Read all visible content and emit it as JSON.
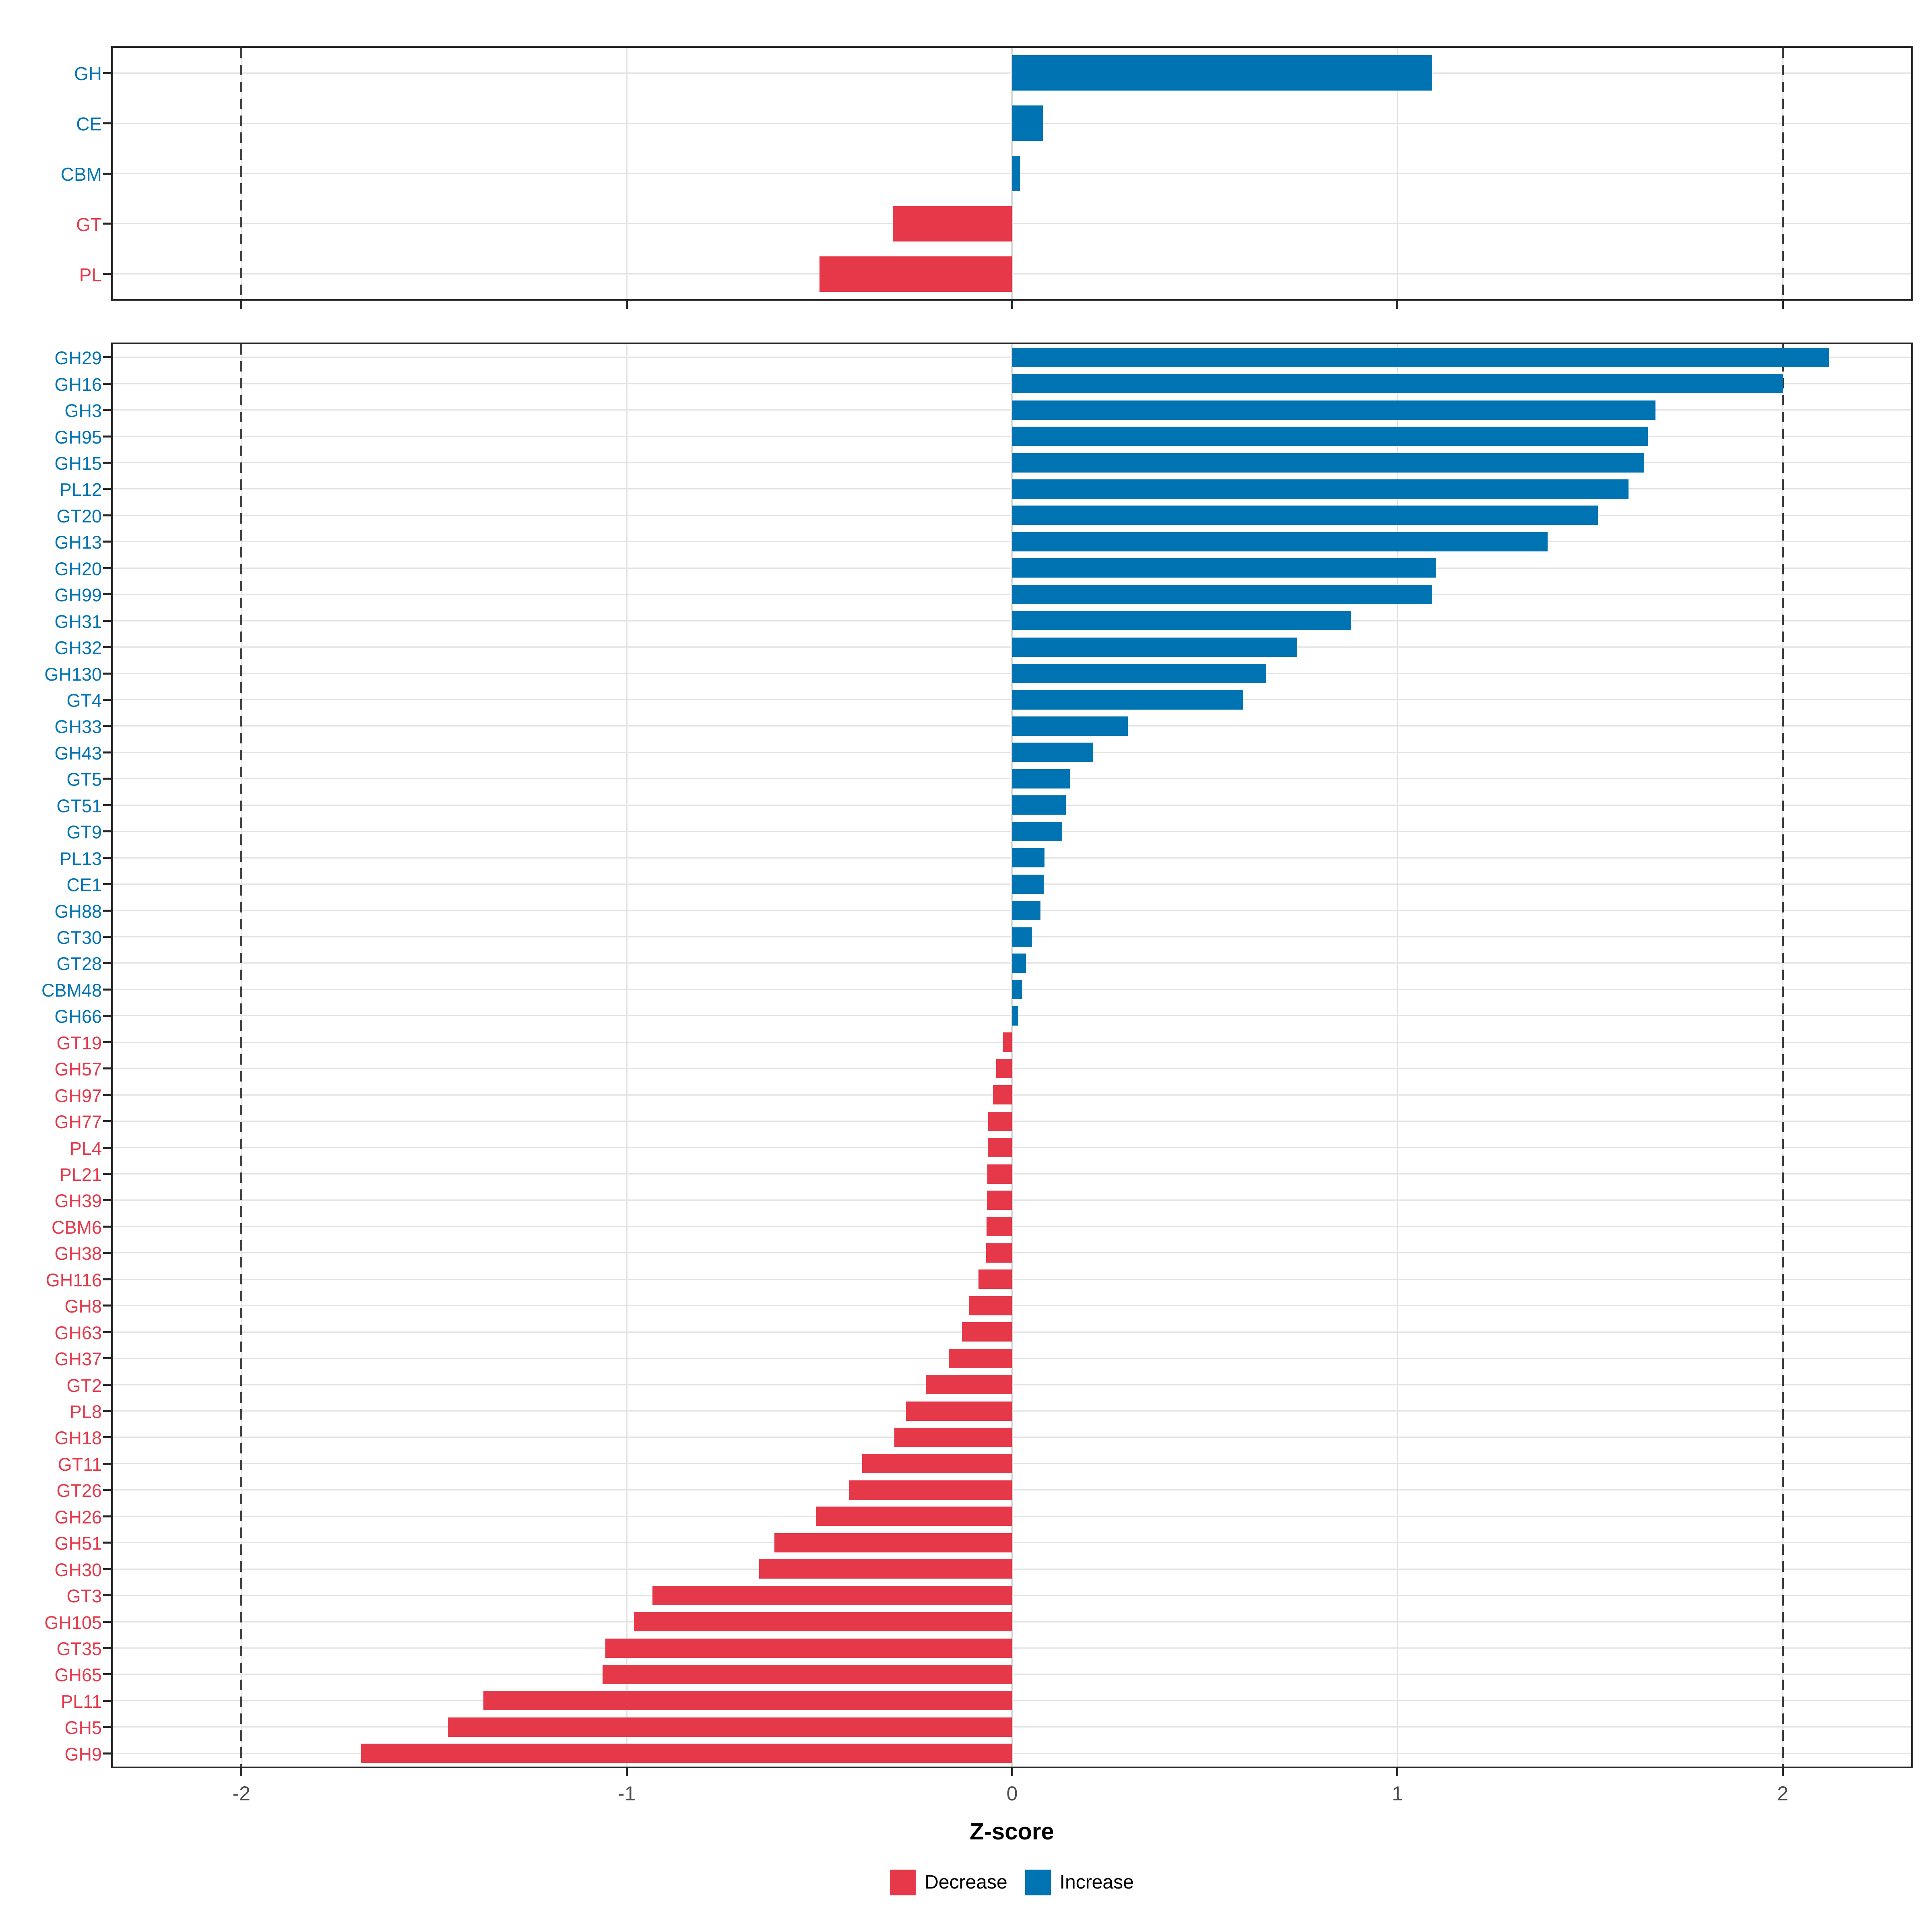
{
  "chart_data": {
    "type": "bar",
    "orientation": "horizontal",
    "title": "",
    "xlabel": "Z-score",
    "ylabel": "",
    "x_ticks": [
      -2,
      -1,
      0,
      1,
      2
    ],
    "x_range": [
      -2.334,
      2.333
    ],
    "reference_lines_dashed": [
      -2,
      2
    ],
    "grid": true,
    "legend_position": "bottom",
    "colors": {
      "increase": "#0074B3",
      "decrease": "#E5394A",
      "gridline": "#e3e3e3",
      "tick_label": "#4d4d4d"
    },
    "legend": [
      {
        "label": "Decrease",
        "color": "#E5394A"
      },
      {
        "label": "Increase",
        "color": "#0074B3"
      }
    ],
    "panels": [
      {
        "id": "enzyme-class",
        "categories": [
          "GH",
          "CE",
          "CBM",
          "GT",
          "PL"
        ],
        "values": [
          1.09,
          0.08,
          0.02,
          -0.31,
          -0.5
        ]
      },
      {
        "id": "enzyme-family",
        "categories": [
          "GH29",
          "GH16",
          "GH3",
          "GH95",
          "GH15",
          "PL12",
          "GT20",
          "GH13",
          "GH20",
          "GH99",
          "GH31",
          "GH32",
          "GH130",
          "GT4",
          "GH33",
          "GH43",
          "GT5",
          "GT51",
          "GT9",
          "PL13",
          "CE1",
          "GH88",
          "GT30",
          "GT28",
          "CBM48",
          "GH66",
          "GT19",
          "GH57",
          "GH97",
          "GH77",
          "PL4",
          "PL21",
          "GH39",
          "CBM6",
          "GH38",
          "GH116",
          "GH8",
          "GH63",
          "GH37",
          "GT2",
          "PL8",
          "GH18",
          "GT11",
          "GT26",
          "GH26",
          "GH51",
          "GH30",
          "GT3",
          "GH105",
          "GT35",
          "GH65",
          "PL11",
          "GH5",
          "GH9"
        ],
        "values": [
          2.12,
          2.0,
          1.67,
          1.65,
          1.64,
          1.6,
          1.52,
          1.39,
          1.1,
          1.09,
          0.88,
          0.74,
          0.66,
          0.6,
          0.3,
          0.21,
          0.15,
          0.14,
          0.13,
          0.084,
          0.082,
          0.074,
          0.052,
          0.036,
          0.026,
          0.016,
          -0.024,
          -0.041,
          -0.05,
          -0.062,
          -0.063,
          -0.064,
          -0.065,
          -0.066,
          -0.067,
          -0.087,
          -0.112,
          -0.13,
          -0.164,
          -0.224,
          -0.275,
          -0.305,
          -0.389,
          -0.423,
          -0.508,
          -0.617,
          -0.656,
          -0.933,
          -0.981,
          -1.055,
          -1.063,
          -1.372,
          -1.464,
          -1.69
        ]
      }
    ]
  }
}
